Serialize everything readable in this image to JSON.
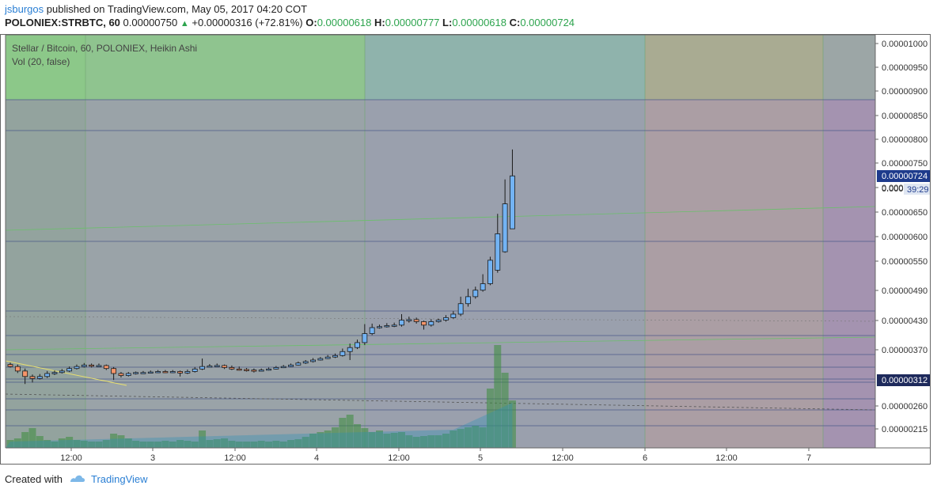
{
  "header": {
    "user": "jsburgos",
    "published": " published on TradingView.com, May 05, 2017 04:20 COT",
    "symbol": "POLONIEX:STRBTC, 60",
    "last": "0.00000750",
    "up_arrow": "▲",
    "change": "+0.00000316 (+72.81%)",
    "o_label": "O:",
    "o_value": "0.00000618",
    "h_label": "H:",
    "h_value": "0.00000777",
    "l_label": "L:",
    "l_value": "0.00000618",
    "c_label": "C:",
    "c_value": "0.00000724"
  },
  "footer": {
    "created_with": "Created with",
    "brand": "TradingView"
  },
  "colors": {
    "up_body": "#73b3f3",
    "down_body": "#f6956a",
    "volume": "#3a8c3a",
    "last_price_badge": "#1e3b8c",
    "low_price_badge": "#1e2a5c"
  },
  "chart_data": {
    "type": "candlestick",
    "title": "Stellar / Bitcoin, 60, POLONIEX, Heikin Ashi",
    "indicator": "Vol (20, false)",
    "ylim": [
      1.9e-06,
      1.05e-05
    ],
    "y_ticks": [
      "0.00001000",
      "0.00000950",
      "0.00000900",
      "0.00000850",
      "0.00000800",
      "0.00000750",
      "0.00000700",
      "0.00000650",
      "0.00000600",
      "0.00000550",
      "0.00000490",
      "0.00000430",
      "0.00000370",
      "0.00000260",
      "0.00000215"
    ],
    "x_ticks": [
      "12:00",
      "3",
      "12:00",
      "4",
      "12:00",
      "5",
      "12:00",
      "6",
      "12:00",
      "7"
    ],
    "last_price_label": "0.00000724",
    "countdown": "39:29",
    "low_price_label": "0.00000312",
    "candles": [
      {
        "t": 0,
        "o": 3.46,
        "c": 3.42,
        "h": 3.5,
        "l": 3.4
      },
      {
        "t": 1,
        "o": 3.42,
        "c": 3.33,
        "h": 3.46,
        "l": 3.29
      },
      {
        "t": 2,
        "o": 3.33,
        "c": 3.22,
        "h": 3.38,
        "l": 3.07
      },
      {
        "t": 3,
        "o": 3.22,
        "c": 3.18,
        "h": 3.26,
        "l": 3.1
      },
      {
        "t": 4,
        "o": 3.18,
        "c": 3.22,
        "h": 3.27,
        "l": 3.16
      },
      {
        "t": 5,
        "o": 3.22,
        "c": 3.28,
        "h": 3.33,
        "l": 3.19
      },
      {
        "t": 6,
        "o": 3.28,
        "c": 3.3,
        "h": 3.34,
        "l": 3.25
      },
      {
        "t": 7,
        "o": 3.3,
        "c": 3.33,
        "h": 3.37,
        "l": 3.28
      },
      {
        "t": 8,
        "o": 3.33,
        "c": 3.38,
        "h": 3.42,
        "l": 3.31
      },
      {
        "t": 9,
        "o": 3.38,
        "c": 3.42,
        "h": 3.46,
        "l": 3.36
      },
      {
        "t": 10,
        "o": 3.42,
        "c": 3.45,
        "h": 3.49,
        "l": 3.4
      },
      {
        "t": 11,
        "o": 3.45,
        "c": 3.43,
        "h": 3.48,
        "l": 3.4
      },
      {
        "t": 12,
        "o": 3.43,
        "c": 3.44,
        "h": 3.48,
        "l": 3.41
      },
      {
        "t": 13,
        "o": 3.44,
        "c": 3.38,
        "h": 3.46,
        "l": 3.35
      },
      {
        "t": 14,
        "o": 3.38,
        "c": 3.28,
        "h": 3.41,
        "l": 3.15
      },
      {
        "t": 15,
        "o": 3.28,
        "c": 3.24,
        "h": 3.31,
        "l": 3.2
      },
      {
        "t": 16,
        "o": 3.24,
        "c": 3.28,
        "h": 3.31,
        "l": 3.22
      },
      {
        "t": 17,
        "o": 3.28,
        "c": 3.3,
        "h": 3.32,
        "l": 3.26
      },
      {
        "t": 18,
        "o": 3.3,
        "c": 3.3,
        "h": 3.33,
        "l": 3.28
      },
      {
        "t": 19,
        "o": 3.3,
        "c": 3.31,
        "h": 3.34,
        "l": 3.28
      },
      {
        "t": 20,
        "o": 3.31,
        "c": 3.32,
        "h": 3.35,
        "l": 3.29
      },
      {
        "t": 21,
        "o": 3.32,
        "c": 3.31,
        "h": 3.35,
        "l": 3.29
      },
      {
        "t": 22,
        "o": 3.31,
        "c": 3.32,
        "h": 3.35,
        "l": 3.29
      },
      {
        "t": 23,
        "o": 3.32,
        "c": 3.29,
        "h": 3.34,
        "l": 3.22
      },
      {
        "t": 24,
        "o": 3.29,
        "c": 3.32,
        "h": 3.36,
        "l": 3.27
      },
      {
        "t": 25,
        "o": 3.32,
        "c": 3.37,
        "h": 3.41,
        "l": 3.3
      },
      {
        "t": 26,
        "o": 3.37,
        "c": 3.42,
        "h": 3.58,
        "l": 3.35
      },
      {
        "t": 27,
        "o": 3.42,
        "c": 3.43,
        "h": 3.47,
        "l": 3.4
      },
      {
        "t": 28,
        "o": 3.43,
        "c": 3.44,
        "h": 3.48,
        "l": 3.41
      },
      {
        "t": 29,
        "o": 3.44,
        "c": 3.4,
        "h": 3.46,
        "l": 3.37
      },
      {
        "t": 30,
        "o": 3.4,
        "c": 3.37,
        "h": 3.44,
        "l": 3.35
      },
      {
        "t": 31,
        "o": 3.37,
        "c": 3.36,
        "h": 3.42,
        "l": 3.34
      },
      {
        "t": 32,
        "o": 3.36,
        "c": 3.35,
        "h": 3.39,
        "l": 3.32
      },
      {
        "t": 33,
        "o": 3.35,
        "c": 3.34,
        "h": 3.38,
        "l": 3.3
      },
      {
        "t": 34,
        "o": 3.34,
        "c": 3.35,
        "h": 3.38,
        "l": 3.32
      },
      {
        "t": 35,
        "o": 3.35,
        "c": 3.37,
        "h": 3.4,
        "l": 3.34
      },
      {
        "t": 36,
        "o": 3.37,
        "c": 3.4,
        "h": 3.43,
        "l": 3.36
      },
      {
        "t": 37,
        "o": 3.4,
        "c": 3.42,
        "h": 3.45,
        "l": 3.39
      },
      {
        "t": 38,
        "o": 3.42,
        "c": 3.45,
        "h": 3.48,
        "l": 3.41
      },
      {
        "t": 39,
        "o": 3.45,
        "c": 3.49,
        "h": 3.52,
        "l": 3.44
      },
      {
        "t": 40,
        "o": 3.49,
        "c": 3.52,
        "h": 3.55,
        "l": 3.47
      },
      {
        "t": 41,
        "o": 3.52,
        "c": 3.55,
        "h": 3.59,
        "l": 3.5
      },
      {
        "t": 42,
        "o": 3.55,
        "c": 3.58,
        "h": 3.61,
        "l": 3.54
      },
      {
        "t": 43,
        "o": 3.58,
        "c": 3.61,
        "h": 3.65,
        "l": 3.57
      },
      {
        "t": 44,
        "o": 3.61,
        "c": 3.64,
        "h": 3.68,
        "l": 3.59
      },
      {
        "t": 45,
        "o": 3.64,
        "c": 3.72,
        "h": 3.78,
        "l": 3.62
      },
      {
        "t": 46,
        "o": 3.72,
        "c": 3.8,
        "h": 3.88,
        "l": 3.55
      },
      {
        "t": 47,
        "o": 3.8,
        "c": 3.9,
        "h": 3.96,
        "l": 3.77
      },
      {
        "t": 48,
        "o": 3.9,
        "c": 4.08,
        "h": 4.27,
        "l": 3.85
      },
      {
        "t": 49,
        "o": 4.08,
        "c": 4.2,
        "h": 4.28,
        "l": 4.05
      },
      {
        "t": 50,
        "o": 4.2,
        "c": 4.22,
        "h": 4.26,
        "l": 4.18
      },
      {
        "t": 51,
        "o": 4.22,
        "c": 4.24,
        "h": 4.29,
        "l": 4.2
      },
      {
        "t": 52,
        "o": 4.24,
        "c": 4.25,
        "h": 4.3,
        "l": 4.21
      },
      {
        "t": 53,
        "o": 4.25,
        "c": 4.35,
        "h": 4.47,
        "l": 4.22
      },
      {
        "t": 54,
        "o": 4.35,
        "c": 4.36,
        "h": 4.42,
        "l": 4.3
      },
      {
        "t": 55,
        "o": 4.36,
        "c": 4.32,
        "h": 4.4,
        "l": 4.28
      },
      {
        "t": 56,
        "o": 4.32,
        "c": 4.25,
        "h": 4.34,
        "l": 4.16
      },
      {
        "t": 57,
        "o": 4.25,
        "c": 4.32,
        "h": 4.37,
        "l": 4.22
      },
      {
        "t": 58,
        "o": 4.32,
        "c": 4.35,
        "h": 4.38,
        "l": 4.3
      },
      {
        "t": 59,
        "o": 4.35,
        "c": 4.4,
        "h": 4.45,
        "l": 4.32
      },
      {
        "t": 60,
        "o": 4.4,
        "c": 4.47,
        "h": 4.53,
        "l": 4.38
      },
      {
        "t": 61,
        "o": 4.47,
        "c": 4.68,
        "h": 4.82,
        "l": 4.43
      },
      {
        "t": 62,
        "o": 4.68,
        "c": 4.82,
        "h": 4.98,
        "l": 4.62
      },
      {
        "t": 63,
        "o": 4.82,
        "c": 4.95,
        "h": 5.02,
        "l": 4.78
      },
      {
        "t": 64,
        "o": 4.95,
        "c": 5.08,
        "h": 5.27,
        "l": 4.92
      },
      {
        "t": 65,
        "o": 5.08,
        "c": 5.55,
        "h": 5.62,
        "l": 5.05
      },
      {
        "t": 66,
        "o": 5.35,
        "c": 6.08,
        "h": 6.48,
        "l": 5.3
      },
      {
        "t": 67,
        "o": 5.72,
        "c": 6.68,
        "h": 7.17,
        "l": 5.7
      },
      {
        "t": 68,
        "o": 6.18,
        "c": 7.24,
        "h": 7.77,
        "l": 6.18
      }
    ],
    "volume": [
      10,
      12,
      20,
      25,
      15,
      10,
      8,
      12,
      14,
      10,
      9,
      8,
      8,
      10,
      18,
      16,
      12,
      9,
      8,
      8,
      8,
      9,
      8,
      10,
      9,
      8,
      22,
      10,
      11,
      12,
      9,
      8,
      8,
      8,
      9,
      8,
      9,
      8,
      10,
      11,
      14,
      18,
      20,
      22,
      26,
      38,
      42,
      30,
      25,
      20,
      22,
      18,
      19,
      20,
      16,
      14,
      15,
      16,
      16,
      18,
      22,
      24,
      26,
      28,
      26,
      75,
      130,
      95,
      60
    ]
  }
}
